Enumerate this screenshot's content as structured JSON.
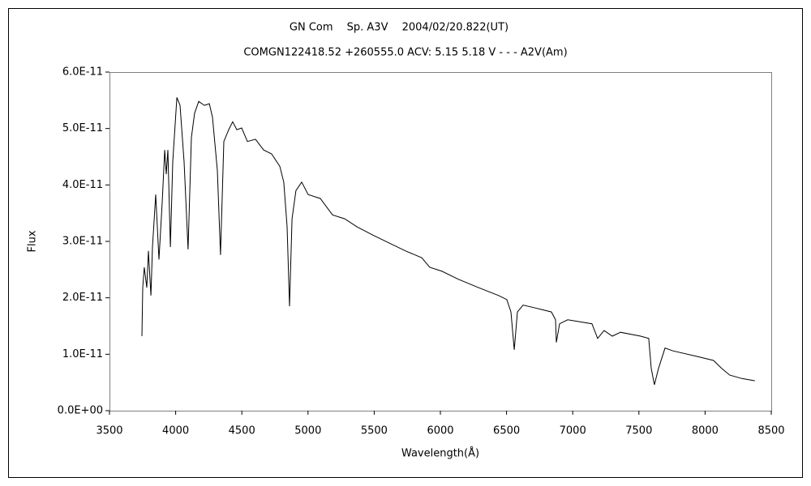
{
  "chart_data": {
    "type": "line",
    "title": "GN Com　 Sp. A3V　 2004/02/20.822(UT)",
    "subtitle": "COMGN122418.52 +260555.0 ACV: 5.15 5.18 V - - - A2V(Am)",
    "x_label": "Wavelength(Å)",
    "y_label": "Flux",
    "xlim": [
      3500,
      8500
    ],
    "xticks": [
      3500,
      4000,
      4500,
      5000,
      5500,
      6000,
      6500,
      7000,
      7500,
      8000,
      8500
    ],
    "ylim": [
      0,
      6e-11
    ],
    "yticks": [
      {
        "value": 0,
        "label": "0.0E+00"
      },
      {
        "value": 1e-11,
        "label": "1.0E-11"
      },
      {
        "value": 2e-11,
        "label": "2.0E-11"
      },
      {
        "value": 3e-11,
        "label": "3.0E-11"
      },
      {
        "value": 4e-11,
        "label": "4.0E-11"
      },
      {
        "value": 5e-11,
        "label": "5.0E-11"
      },
      {
        "value": 6e-11,
        "label": "6.0E-11"
      }
    ],
    "grid": false,
    "series": [
      {
        "color": "#000000",
        "x": [
          3745,
          3751,
          3763,
          3782,
          3794,
          3813,
          3825,
          3849,
          3874,
          3898,
          3917,
          3929,
          3941,
          3960,
          3978,
          4009,
          4033,
          4064,
          4094,
          4119,
          4143,
          4174,
          4217,
          4254,
          4278,
          4315,
          4339,
          4364,
          4401,
          4431,
          4462,
          4499,
          4542,
          4603,
          4664,
          4725,
          4787,
          4817,
          4842,
          4860,
          4879,
          4909,
          4952,
          5001,
          5093,
          5185,
          5277,
          5369,
          5491,
          5614,
          5737,
          5859,
          5920,
          6012,
          6135,
          6288,
          6441,
          6502,
          6533,
          6558,
          6582,
          6625,
          6717,
          6839,
          6870,
          6876,
          6901,
          6962,
          7145,
          7188,
          7237,
          7299,
          7360,
          7513,
          7574,
          7593,
          7617,
          7648,
          7697,
          7758,
          7941,
          8064,
          8125,
          8186,
          8278,
          8376
        ],
        "values": [
          1.32e-11,
          2.18e-11,
          2.54e-11,
          2.18e-11,
          2.83e-11,
          2.04e-11,
          2.9e-11,
          3.83e-11,
          2.68e-11,
          3.69e-11,
          4.62e-11,
          4.19e-11,
          4.62e-11,
          2.9e-11,
          4.41e-11,
          5.55e-11,
          5.41e-11,
          4.41e-11,
          2.86e-11,
          4.84e-11,
          5.27e-11,
          5.48e-11,
          5.41e-11,
          5.44e-11,
          5.2e-11,
          4.26e-11,
          2.76e-11,
          4.77e-11,
          4.98e-11,
          5.12e-11,
          4.98e-11,
          5.01e-11,
          4.77e-11,
          4.81e-11,
          4.62e-11,
          4.55e-11,
          4.33e-11,
          4.05e-11,
          3.26e-11,
          1.85e-11,
          3.4e-11,
          3.9e-11,
          4.05e-11,
          3.83e-11,
          3.76e-11,
          3.47e-11,
          3.4e-11,
          3.26e-11,
          3.11e-11,
          2.97e-11,
          2.83e-11,
          2.71e-11,
          2.54e-11,
          2.47e-11,
          2.33e-11,
          2.18e-11,
          2.04e-11,
          1.97e-11,
          1.75e-11,
          1.08e-11,
          1.75e-11,
          1.87e-11,
          1.82e-11,
          1.75e-11,
          1.61e-11,
          1.21e-11,
          1.54e-11,
          1.61e-11,
          1.54e-11,
          1.28e-11,
          1.42e-11,
          1.32e-11,
          1.39e-11,
          1.32e-11,
          1.28e-11,
          7.5e-12,
          4.6e-12,
          7.5e-12,
          1.11e-11,
          1.06e-11,
          9.6e-12,
          8.9e-12,
          7.5e-12,
          6.3e-12,
          5.7e-12,
          5.3e-12
        ]
      }
    ]
  }
}
